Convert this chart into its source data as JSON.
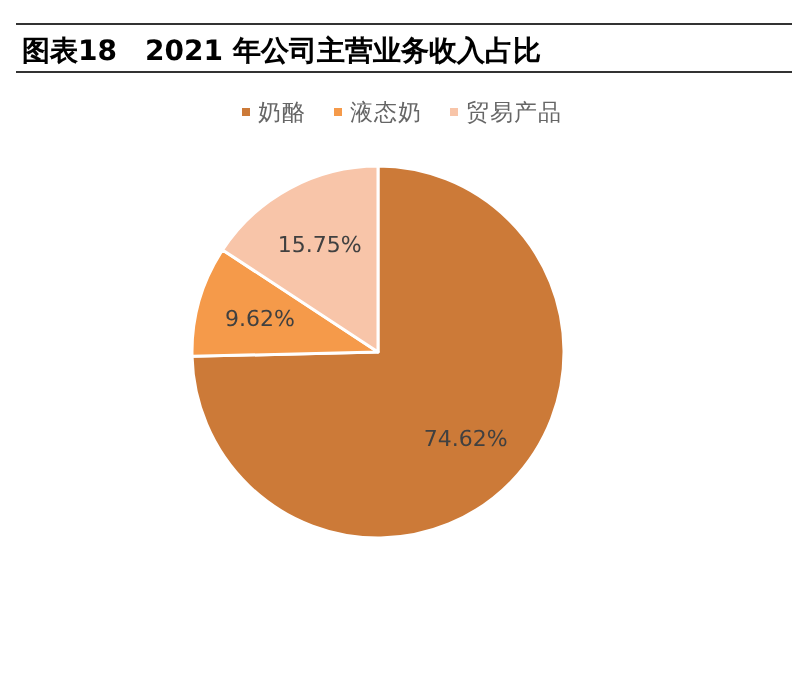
{
  "chart_data": {
    "type": "pie",
    "title": "图表18　2021 年公司主营业务收入占比",
    "categories": [
      "奶酪",
      "液态奶",
      "贸易产品"
    ],
    "values": [
      74.62,
      9.62,
      15.75
    ],
    "colors": [
      "#cc7a38",
      "#f59a4a",
      "#f8c5a9"
    ],
    "value_labels": [
      "74.62%",
      "9.62%",
      "15.75%"
    ],
    "legend": "top"
  }
}
